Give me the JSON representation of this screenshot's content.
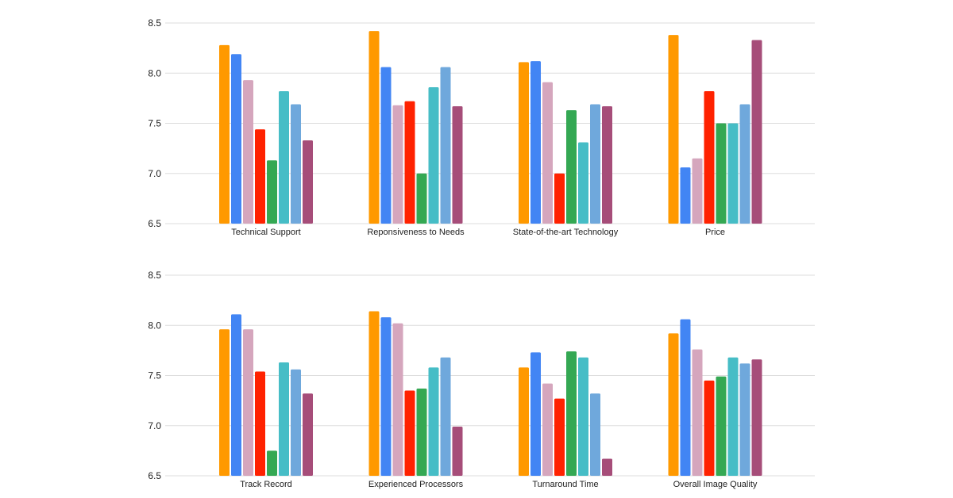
{
  "chart_data": [
    {
      "type": "bar",
      "ylim": [
        6.5,
        8.5
      ],
      "yticks": [
        "6.5",
        "7.0",
        "7.5",
        "8.0",
        "8.5"
      ],
      "grid": true,
      "categories": [
        "Technical Support",
        "Reponsiveness to Needs",
        "State-of-the-art Technology",
        "Price"
      ],
      "series": [
        {
          "color": "#ff9900",
          "values": [
            8.28,
            8.42,
            8.11,
            8.38
          ]
        },
        {
          "color": "#4285f4",
          "values": [
            8.19,
            8.06,
            8.12,
            7.06
          ]
        },
        {
          "color": "#d5a6bd",
          "values": [
            7.93,
            7.68,
            7.91,
            7.15
          ]
        },
        {
          "color": "#ff2200",
          "values": [
            7.44,
            7.72,
            7.0,
            7.82
          ]
        },
        {
          "color": "#34a853",
          "values": [
            7.13,
            7.0,
            7.63,
            7.5
          ]
        },
        {
          "color": "#46bdc6",
          "values": [
            7.82,
            7.86,
            7.31,
            7.5
          ]
        },
        {
          "color": "#6fa8dc",
          "values": [
            7.69,
            8.06,
            7.69,
            7.69
          ]
        },
        {
          "color": "#a64d79",
          "values": [
            7.33,
            7.67,
            7.67,
            8.33
          ]
        }
      ]
    },
    {
      "type": "bar",
      "ylim": [
        6.5,
        8.5
      ],
      "yticks": [
        "6.5",
        "7.0",
        "7.5",
        "8.0",
        "8.5"
      ],
      "grid": true,
      "categories": [
        "Track Record",
        "Experienced Processors",
        "Turnaround Time",
        "Overall Image Quality"
      ],
      "series": [
        {
          "color": "#ff9900",
          "values": [
            7.96,
            8.14,
            7.58,
            7.92
          ]
        },
        {
          "color": "#4285f4",
          "values": [
            8.11,
            8.08,
            7.73,
            8.06
          ]
        },
        {
          "color": "#d5a6bd",
          "values": [
            7.96,
            8.02,
            7.42,
            7.76
          ]
        },
        {
          "color": "#ff2200",
          "values": [
            7.54,
            7.35,
            7.27,
            7.45
          ]
        },
        {
          "color": "#34a853",
          "values": [
            6.75,
            7.37,
            7.74,
            7.49
          ]
        },
        {
          "color": "#46bdc6",
          "values": [
            7.63,
            7.58,
            7.68,
            7.68
          ]
        },
        {
          "color": "#6fa8dc",
          "values": [
            7.56,
            7.68,
            7.32,
            7.62
          ]
        },
        {
          "color": "#a64d79",
          "values": [
            7.32,
            6.99,
            6.67,
            7.66
          ]
        }
      ]
    }
  ]
}
